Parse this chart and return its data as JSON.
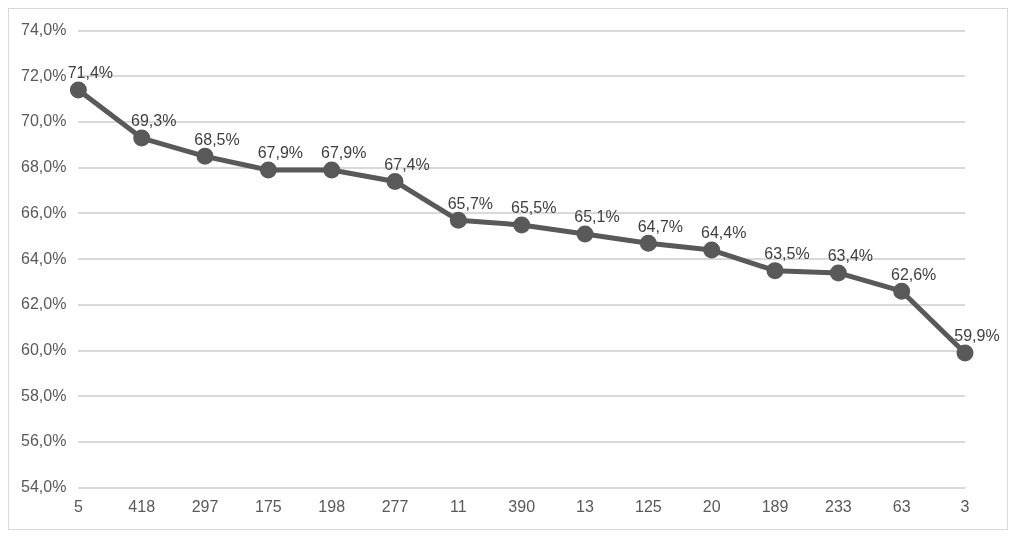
{
  "chart_data": {
    "type": "line",
    "categories": [
      "5",
      "418",
      "297",
      "175",
      "198",
      "277",
      "11",
      "390",
      "13",
      "125",
      "20",
      "189",
      "233",
      "63",
      "3"
    ],
    "series": [
      {
        "color": "#595959",
        "values": [
          71.4,
          69.3,
          68.5,
          67.9,
          67.9,
          67.4,
          65.7,
          65.5,
          65.1,
          64.7,
          64.4,
          63.5,
          63.4,
          62.6,
          59.9
        ],
        "value_labels": [
          "71,4%",
          "69,3%",
          "68,5%",
          "67,9%",
          "67,9%",
          "67,4%",
          "65,7%",
          "65,5%",
          "65,1%",
          "64,7%",
          "64,4%",
          "63,5%",
          "63,4%",
          "62,6%",
          "59,9%"
        ]
      }
    ],
    "ylim": [
      54,
      74
    ],
    "yticks": [
      {
        "value": 54,
        "label": "54,0%"
      },
      {
        "value": 56,
        "label": "56,0%"
      },
      {
        "value": 58,
        "label": "58,0%"
      },
      {
        "value": 60,
        "label": "60,0%"
      },
      {
        "value": 62,
        "label": "62,0%"
      },
      {
        "value": 64,
        "label": "64,0%"
      },
      {
        "value": 66,
        "label": "66,0%"
      },
      {
        "value": 68,
        "label": "68,0%"
      },
      {
        "value": 70,
        "label": "70,0%"
      },
      {
        "value": 72,
        "label": "72,0%"
      },
      {
        "value": 74,
        "label": "74,0%"
      }
    ],
    "grid": "y",
    "legend": false,
    "marker": "circle",
    "line_style": "solid"
  }
}
